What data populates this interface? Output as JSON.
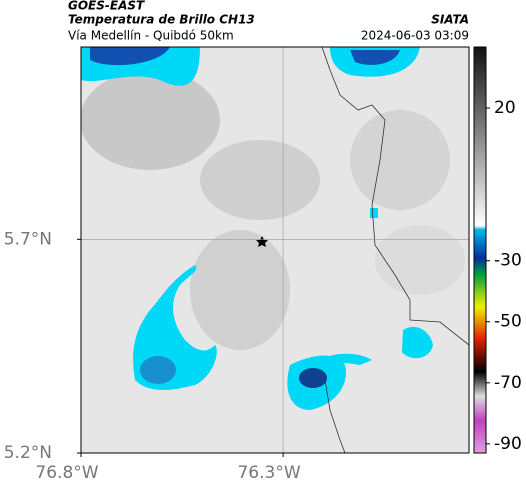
{
  "header": {
    "title": "GOES-EAST",
    "subtitle": "Temperatura de Brillo CH13",
    "location": "Vía Medellín - Quibdó 50km",
    "source": "SIATA",
    "timestamp": "2024-06-03 03:09"
  },
  "map": {
    "xlim": [
      -76.8,
      -75.84
    ],
    "ylim": [
      5.2,
      6.15
    ],
    "xticks": [
      {
        "value": -76.8,
        "label": "76.8°W"
      },
      {
        "value": -76.3,
        "label": "76.3°W"
      }
    ],
    "yticks": [
      {
        "value": 5.7,
        "label": "5.7°N"
      },
      {
        "value": 5.2,
        "label": "5.2°N"
      }
    ]
  },
  "colorbar": {
    "lim": [
      40,
      -93
    ],
    "ticks": [
      20,
      -30,
      -50,
      -70,
      -90
    ]
  }
}
